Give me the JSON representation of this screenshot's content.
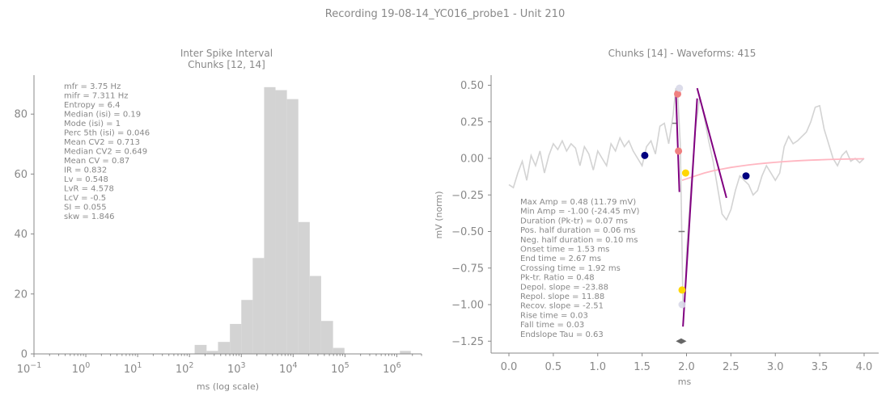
{
  "figure": {
    "suptitle": "Recording 19-08-14_YC016_probe1 - Unit 210"
  },
  "chart_data": [
    {
      "type": "bar",
      "title": "Inter Spike Interval\nChunks [12, 14]",
      "xlabel": "ms (log scale)",
      "ylabel": "",
      "xscale": "log",
      "xlim": [
        0.1,
        3000000
      ],
      "ylim": [
        0,
        93
      ],
      "xtick_labels": [
        {
          "base": "10",
          "exp": "−1",
          "value": 0.1
        },
        {
          "base": "10",
          "exp": "0",
          "value": 1
        },
        {
          "base": "10",
          "exp": "1",
          "value": 10
        },
        {
          "base": "10",
          "exp": "2",
          "value": 100
        },
        {
          "base": "10",
          "exp": "3",
          "value": 1000
        },
        {
          "base": "10",
          "exp": "4",
          "value": 10000
        },
        {
          "base": "10",
          "exp": "5",
          "value": 100000
        },
        {
          "base": "10",
          "exp": "6",
          "value": 1000000
        }
      ],
      "yticks": [
        0,
        20,
        40,
        60,
        80
      ],
      "bin_edges_log10": [
        2.1,
        2.33,
        2.55,
        2.78,
        3.0,
        3.22,
        3.44,
        3.66,
        3.88,
        4.1,
        4.32,
        4.54,
        4.77,
        4.99,
        5.21
      ],
      "counts": [
        3,
        1,
        4,
        10,
        18,
        32,
        89,
        88,
        85,
        44,
        26,
        11,
        2,
        0
      ],
      "outlier_bins": [
        {
          "left_log10": 6.06,
          "right_log10": 6.27,
          "count": 1
        }
      ],
      "grid": false,
      "stats": [
        "mfr = 3.75 Hz",
        "mifr = 7.311 Hz",
        "Entropy = 6.4",
        "Median (isi) = 0.19",
        "Mode (isi) = 1",
        "Perc 5th (isi) = 0.046",
        "Mean CV2 = 0.713",
        "Median CV2 = 0.649",
        "Mean CV = 0.87",
        "IR = 0.832",
        "Lv = 0.548",
        "LvR = 4.578",
        "LcV = -0.5",
        "SI = 0.055",
        "skw = 1.846"
      ]
    },
    {
      "type": "line",
      "title": "Chunks [14] - Waveforms: 415",
      "xlabel": "ms",
      "ylabel": "mV (norm)",
      "xlim": [
        -0.2,
        4.15
      ],
      "ylim": [
        -1.33,
        0.57
      ],
      "xticks": [
        0.0,
        0.5,
        1.0,
        1.5,
        2.0,
        2.5,
        3.0,
        3.5,
        4.0
      ],
      "xtick_labels": [
        "0.0",
        "0.5",
        "1.0",
        "1.5",
        "2.0",
        "2.5",
        "3.0",
        "3.5",
        "4.0"
      ],
      "yticks": [
        0.5,
        0.25,
        0.0,
        -0.25,
        -0.5,
        -0.75,
        -1.0,
        -1.25
      ],
      "ytick_labels": [
        "0.50",
        "0.25",
        "0.00",
        "−0.25",
        "−0.50",
        "−0.75",
        "−1.00",
        "−1.25"
      ],
      "grid": false,
      "series": [
        {
          "role": "waveform",
          "color": "#d3d3d3",
          "x": [
            0.0,
            0.05,
            0.1,
            0.15,
            0.2,
            0.25,
            0.3,
            0.35,
            0.4,
            0.45,
            0.5,
            0.55,
            0.6,
            0.65,
            0.7,
            0.75,
            0.8,
            0.85,
            0.9,
            0.95,
            1.0,
            1.05,
            1.1,
            1.15,
            1.2,
            1.25,
            1.3,
            1.35,
            1.4,
            1.45,
            1.5,
            1.55,
            1.6,
            1.65,
            1.7,
            1.75,
            1.8,
            1.85,
            1.88,
            1.9,
            1.93,
            1.96,
            1.98,
            2.0,
            2.05,
            2.1,
            2.15,
            2.2,
            2.25,
            2.3,
            2.35,
            2.4,
            2.45,
            2.5,
            2.55,
            2.6,
            2.65,
            2.7,
            2.75,
            2.8,
            2.85,
            2.9,
            2.95,
            3.0,
            3.05,
            3.1,
            3.15,
            3.2,
            3.25,
            3.3,
            3.35,
            3.4,
            3.45,
            3.5,
            3.55,
            3.6,
            3.65,
            3.7,
            3.75,
            3.8,
            3.85,
            3.9,
            3.95,
            4.0
          ],
          "y": [
            -0.18,
            -0.2,
            -0.1,
            -0.02,
            -0.15,
            0.02,
            -0.05,
            0.05,
            -0.1,
            0.02,
            0.1,
            0.06,
            0.12,
            0.05,
            0.1,
            0.07,
            -0.05,
            0.08,
            0.03,
            -0.08,
            0.05,
            0.0,
            -0.05,
            0.1,
            0.05,
            0.14,
            0.08,
            0.12,
            0.05,
            0.0,
            -0.05,
            0.08,
            0.12,
            0.03,
            0.22,
            0.24,
            0.1,
            0.3,
            0.48,
            0.45,
            0.1,
            -1.0,
            -1.0,
            -0.65,
            -0.2,
            0.2,
            0.42,
            0.28,
            0.12,
            -0.02,
            -0.2,
            -0.38,
            -0.42,
            -0.35,
            -0.22,
            -0.12,
            -0.15,
            -0.18,
            -0.25,
            -0.22,
            -0.12,
            -0.05,
            -0.1,
            -0.15,
            -0.1,
            0.08,
            0.15,
            0.1,
            0.12,
            0.15,
            0.18,
            0.25,
            0.35,
            0.36,
            0.2,
            0.1,
            0.0,
            -0.05,
            0.02,
            0.05,
            -0.02,
            0.0,
            -0.03,
            0.0
          ]
        },
        {
          "role": "endslope-fit",
          "color": "#ffb6c1",
          "x": [
            1.95,
            2.0,
            2.1,
            2.2,
            2.3,
            2.4,
            2.5,
            2.6,
            2.7,
            2.8,
            2.9,
            3.0,
            3.1,
            3.2,
            3.3,
            3.4,
            3.5,
            3.6,
            3.7,
            3.8,
            3.9,
            4.0
          ],
          "y": [
            -0.15,
            -0.14,
            -0.12,
            -0.1,
            -0.085,
            -0.073,
            -0.062,
            -0.053,
            -0.045,
            -0.038,
            -0.032,
            -0.027,
            -0.022,
            -0.018,
            -0.015,
            -0.012,
            -0.01,
            -0.008,
            -0.006,
            -0.005,
            -0.004,
            -0.003
          ]
        }
      ],
      "slope_lines": [
        {
          "role": "depol-slope",
          "color": "#800080",
          "x": [
            1.88,
            1.92
          ],
          "y": [
            0.46,
            -0.23
          ]
        },
        {
          "role": "repol-slope",
          "color": "#800080",
          "x": [
            1.96,
            2.12
          ],
          "y": [
            -1.15,
            0.41
          ]
        },
        {
          "role": "recov-slope",
          "color": "#800080",
          "x": [
            2.12,
            2.45
          ],
          "y": [
            0.48,
            -0.27
          ]
        }
      ],
      "markers": [
        {
          "role": "onset",
          "color": "#000080",
          "x": 1.53,
          "y": 0.02
        },
        {
          "role": "end",
          "color": "#000080",
          "x": 2.67,
          "y": -0.12
        },
        {
          "role": "pos-peak-rise",
          "color": "#f08080",
          "x": 1.9,
          "y": 0.44
        },
        {
          "role": "pos-peak-fall",
          "color": "#f08080",
          "x": 1.91,
          "y": 0.05
        },
        {
          "role": "crossing",
          "color": "#ffd700",
          "x": 1.99,
          "y": -0.1
        },
        {
          "role": "trough-half",
          "color": "#ffd700",
          "x": 1.95,
          "y": -0.9
        },
        {
          "role": "peak",
          "color": "#d8d8e8",
          "x": 1.92,
          "y": 0.48
        },
        {
          "role": "trough",
          "color": "#d8d8e8",
          "x": 1.95,
          "y": -1.0
        }
      ],
      "half_width_ticks": [
        {
          "x": [
            1.84,
            1.9
          ],
          "y": 0.24
        },
        {
          "x": [
            1.91,
            1.98
          ],
          "y": -0.5
        }
      ],
      "duration_arrow": {
        "x": [
          1.88,
          2.0
        ],
        "y": -1.25
      },
      "stats": [
        "Max Amp = 0.48 (11.79 mV)",
        "Min Amp = -1.00 (-24.45 mV)",
        "Duration (Pk-tr) = 0.07 ms",
        "Pos. half duration = 0.06 ms",
        "Neg. half duration = 0.10 ms",
        "Onset time = 1.53 ms",
        "End time = 2.67 ms",
        "Crossing time = 1.92 ms",
        "Pk-tr. Ratio = 0.48",
        "Depol. slope = -23.88",
        "Repol. slope = 11.88",
        "Recov. slope = -2.51",
        "Rise time = 0.03",
        "Fall time = 0.03",
        "Endslope Tau = 0.63"
      ]
    }
  ]
}
